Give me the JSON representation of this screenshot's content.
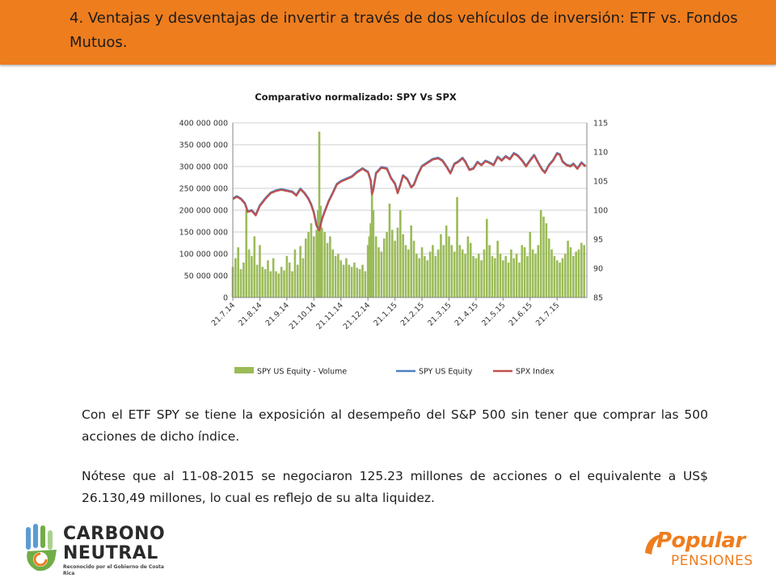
{
  "slide": {
    "title": "4. Ventajas y desventajas de invertir a través de dos vehículos  de inversión: ETF vs. Fondos  Mutuos.",
    "paragraph_1": "Con el ETF SPY se tiene la exposición al desempeño del S&P 500 sin tener que comprar las 500 acciones de dicho índice.",
    "paragraph_2": "Nótese  que  al 11-08-2015 se negociaron 125.23 millones de acciones o el equivalente a US$ 26.130,49 millones, lo cual es reflejo de su alta liquidez."
  },
  "logos": {
    "left_line_1": "CARBONO",
    "left_line_2": "NEUTRAL",
    "left_line_3": "Reconocido por el Gobierno de Costa Rica",
    "right_line_1": "Popular",
    "right_line_2": "PENSIONES"
  },
  "colors": {
    "header": "#ee7d1e",
    "volume": "#9bbb59",
    "spy_equity": "#4f81bd",
    "spx_index": "#c0504d",
    "axis": "#868686",
    "grid": "#bfbfbf"
  },
  "chart_data": {
    "type": "bar+line",
    "title": "Comparativo normalizado: SPY Vs SPX",
    "y_left": {
      "min": 0,
      "max": 400000000,
      "step": 50000000,
      "ticks": [
        "0",
        "50 000 000",
        "100 000 000",
        "150 000 000",
        "200 000 000",
        "250 000 000",
        "300 000 000",
        "350 000 000",
        "400 000 000"
      ]
    },
    "y_right": {
      "min": 85,
      "max": 115,
      "step": 5,
      "ticks": [
        "85",
        "90",
        "95",
        "100",
        "105",
        "110",
        "115"
      ]
    },
    "x_ticks": [
      "21.7.14",
      "21.8.14",
      "21.9.14",
      "21.10.14",
      "21.11.14",
      "21.12.14",
      "21.1.15",
      "21.2.15",
      "21.3.15",
      "21.4.15",
      "21.5.15",
      "21.6.15",
      "21.7.15"
    ],
    "legend": {
      "position": "bottom",
      "entries": [
        {
          "name": "SPY US Equity - Volume",
          "kind": "bar",
          "color": "#9bbb59"
        },
        {
          "name": "SPY US Equity",
          "kind": "line",
          "color": "#4f81bd"
        },
        {
          "name": "SPX Index",
          "kind": "line",
          "color": "#c0504d"
        }
      ]
    },
    "x_range": [
      0,
      13.1
    ],
    "price_series": [
      [
        0.0,
        102.0
      ],
      [
        0.15,
        102.4
      ],
      [
        0.3,
        102.0
      ],
      [
        0.45,
        101.2
      ],
      [
        0.55,
        99.8
      ],
      [
        0.7,
        100.0
      ],
      [
        0.85,
        99.2
      ],
      [
        1.0,
        100.8
      ],
      [
        1.2,
        102.0
      ],
      [
        1.4,
        103.0
      ],
      [
        1.6,
        103.4
      ],
      [
        1.8,
        103.6
      ],
      [
        2.0,
        103.4
      ],
      [
        2.2,
        103.2
      ],
      [
        2.35,
        102.6
      ],
      [
        2.5,
        103.7
      ],
      [
        2.65,
        103.0
      ],
      [
        2.8,
        102.0
      ],
      [
        2.9,
        101.0
      ],
      [
        3.0,
        99.6
      ],
      [
        3.1,
        97.4
      ],
      [
        3.2,
        96.6
      ],
      [
        3.3,
        98.5
      ],
      [
        3.4,
        99.8
      ],
      [
        3.55,
        101.6
      ],
      [
        3.7,
        103.0
      ],
      [
        3.85,
        104.5
      ],
      [
        4.0,
        105.0
      ],
      [
        4.2,
        105.4
      ],
      [
        4.4,
        105.8
      ],
      [
        4.6,
        106.6
      ],
      [
        4.8,
        107.2
      ],
      [
        5.0,
        106.6
      ],
      [
        5.1,
        105.2
      ],
      [
        5.15,
        102.8
      ],
      [
        5.2,
        103.6
      ],
      [
        5.3,
        106.4
      ],
      [
        5.5,
        107.4
      ],
      [
        5.7,
        107.2
      ],
      [
        5.85,
        105.6
      ],
      [
        6.0,
        104.6
      ],
      [
        6.1,
        103.0
      ],
      [
        6.2,
        104.4
      ],
      [
        6.3,
        106.0
      ],
      [
        6.45,
        105.4
      ],
      [
        6.6,
        104.0
      ],
      [
        6.7,
        104.4
      ],
      [
        6.85,
        106.2
      ],
      [
        7.0,
        107.6
      ],
      [
        7.2,
        108.2
      ],
      [
        7.4,
        108.8
      ],
      [
        7.6,
        109.0
      ],
      [
        7.75,
        108.6
      ],
      [
        7.9,
        107.6
      ],
      [
        8.05,
        106.4
      ],
      [
        8.2,
        108.0
      ],
      [
        8.35,
        108.4
      ],
      [
        8.5,
        109.0
      ],
      [
        8.6,
        108.4
      ],
      [
        8.75,
        107.0
      ],
      [
        8.9,
        107.2
      ],
      [
        9.05,
        108.3
      ],
      [
        9.2,
        107.8
      ],
      [
        9.35,
        108.5
      ],
      [
        9.5,
        108.2
      ],
      [
        9.65,
        107.8
      ],
      [
        9.8,
        109.2
      ],
      [
        9.95,
        108.6
      ],
      [
        10.1,
        109.3
      ],
      [
        10.25,
        108.8
      ],
      [
        10.4,
        109.8
      ],
      [
        10.55,
        109.4
      ],
      [
        10.7,
        108.6
      ],
      [
        10.85,
        107.6
      ],
      [
        11.0,
        108.6
      ],
      [
        11.15,
        109.5
      ],
      [
        11.3,
        108.2
      ],
      [
        11.45,
        107.0
      ],
      [
        11.55,
        106.5
      ],
      [
        11.7,
        107.8
      ],
      [
        11.85,
        108.6
      ],
      [
        12.0,
        109.8
      ],
      [
        12.1,
        109.6
      ],
      [
        12.2,
        108.4
      ],
      [
        12.35,
        107.8
      ],
      [
        12.5,
        107.6
      ],
      [
        12.6,
        108.0
      ],
      [
        12.75,
        107.2
      ],
      [
        12.9,
        108.2
      ],
      [
        13.05,
        107.6
      ]
    ],
    "volume_series": [
      [
        0.0,
        70000000
      ],
      [
        0.1,
        90000000
      ],
      [
        0.2,
        115000000
      ],
      [
        0.3,
        65000000
      ],
      [
        0.4,
        80000000
      ],
      [
        0.5,
        200000000
      ],
      [
        0.6,
        110000000
      ],
      [
        0.7,
        95000000
      ],
      [
        0.8,
        140000000
      ],
      [
        0.9,
        75000000
      ],
      [
        1.0,
        120000000
      ],
      [
        1.1,
        70000000
      ],
      [
        1.2,
        65000000
      ],
      [
        1.3,
        85000000
      ],
      [
        1.4,
        60000000
      ],
      [
        1.5,
        90000000
      ],
      [
        1.6,
        60000000
      ],
      [
        1.7,
        55000000
      ],
      [
        1.8,
        70000000
      ],
      [
        1.9,
        62000000
      ],
      [
        2.0,
        95000000
      ],
      [
        2.1,
        80000000
      ],
      [
        2.2,
        60000000
      ],
      [
        2.3,
        110000000
      ],
      [
        2.4,
        75000000
      ],
      [
        2.5,
        118000000
      ],
      [
        2.6,
        90000000
      ],
      [
        2.7,
        135000000
      ],
      [
        2.8,
        150000000
      ],
      [
        2.9,
        170000000
      ],
      [
        3.0,
        140000000
      ],
      [
        3.1,
        155000000
      ],
      [
        3.15,
        200000000
      ],
      [
        3.2,
        380000000
      ],
      [
        3.25,
        210000000
      ],
      [
        3.3,
        160000000
      ],
      [
        3.4,
        150000000
      ],
      [
        3.5,
        125000000
      ],
      [
        3.6,
        140000000
      ],
      [
        3.7,
        110000000
      ],
      [
        3.8,
        95000000
      ],
      [
        3.9,
        100000000
      ],
      [
        4.0,
        85000000
      ],
      [
        4.1,
        75000000
      ],
      [
        4.2,
        90000000
      ],
      [
        4.3,
        75000000
      ],
      [
        4.4,
        70000000
      ],
      [
        4.5,
        80000000
      ],
      [
        4.6,
        68000000
      ],
      [
        4.7,
        65000000
      ],
      [
        4.8,
        75000000
      ],
      [
        4.9,
        60000000
      ],
      [
        5.0,
        120000000
      ],
      [
        5.05,
        140000000
      ],
      [
        5.1,
        170000000
      ],
      [
        5.15,
        235000000
      ],
      [
        5.2,
        200000000
      ],
      [
        5.3,
        140000000
      ],
      [
        5.4,
        115000000
      ],
      [
        5.5,
        105000000
      ],
      [
        5.6,
        135000000
      ],
      [
        5.7,
        150000000
      ],
      [
        5.8,
        215000000
      ],
      [
        5.9,
        155000000
      ],
      [
        6.0,
        130000000
      ],
      [
        6.1,
        160000000
      ],
      [
        6.2,
        200000000
      ],
      [
        6.3,
        145000000
      ],
      [
        6.4,
        120000000
      ],
      [
        6.5,
        110000000
      ],
      [
        6.6,
        165000000
      ],
      [
        6.7,
        130000000
      ],
      [
        6.8,
        100000000
      ],
      [
        6.9,
        90000000
      ],
      [
        7.0,
        115000000
      ],
      [
        7.1,
        95000000
      ],
      [
        7.2,
        85000000
      ],
      [
        7.3,
        105000000
      ],
      [
        7.4,
        120000000
      ],
      [
        7.5,
        95000000
      ],
      [
        7.6,
        110000000
      ],
      [
        7.7,
        145000000
      ],
      [
        7.8,
        120000000
      ],
      [
        7.9,
        165000000
      ],
      [
        8.0,
        140000000
      ],
      [
        8.1,
        120000000
      ],
      [
        8.2,
        105000000
      ],
      [
        8.3,
        230000000
      ],
      [
        8.4,
        120000000
      ],
      [
        8.5,
        110000000
      ],
      [
        8.6,
        100000000
      ],
      [
        8.7,
        140000000
      ],
      [
        8.8,
        125000000
      ],
      [
        8.9,
        95000000
      ],
      [
        9.0,
        90000000
      ],
      [
        9.1,
        100000000
      ],
      [
        9.2,
        85000000
      ],
      [
        9.3,
        110000000
      ],
      [
        9.4,
        180000000
      ],
      [
        9.5,
        120000000
      ],
      [
        9.6,
        95000000
      ],
      [
        9.7,
        90000000
      ],
      [
        9.8,
        130000000
      ],
      [
        9.9,
        100000000
      ],
      [
        10.0,
        85000000
      ],
      [
        10.1,
        95000000
      ],
      [
        10.2,
        80000000
      ],
      [
        10.3,
        110000000
      ],
      [
        10.4,
        90000000
      ],
      [
        10.5,
        100000000
      ],
      [
        10.6,
        80000000
      ],
      [
        10.7,
        120000000
      ],
      [
        10.8,
        115000000
      ],
      [
        10.9,
        95000000
      ],
      [
        11.0,
        150000000
      ],
      [
        11.1,
        110000000
      ],
      [
        11.2,
        100000000
      ],
      [
        11.3,
        120000000
      ],
      [
        11.4,
        200000000
      ],
      [
        11.5,
        185000000
      ],
      [
        11.6,
        170000000
      ],
      [
        11.7,
        135000000
      ],
      [
        11.8,
        110000000
      ],
      [
        11.9,
        95000000
      ],
      [
        12.0,
        85000000
      ],
      [
        12.1,
        80000000
      ],
      [
        12.2,
        90000000
      ],
      [
        12.3,
        100000000
      ],
      [
        12.4,
        130000000
      ],
      [
        12.5,
        115000000
      ],
      [
        12.6,
        95000000
      ],
      [
        12.7,
        105000000
      ],
      [
        12.8,
        110000000
      ],
      [
        12.9,
        125000000
      ],
      [
        13.0,
        120000000
      ]
    ]
  }
}
